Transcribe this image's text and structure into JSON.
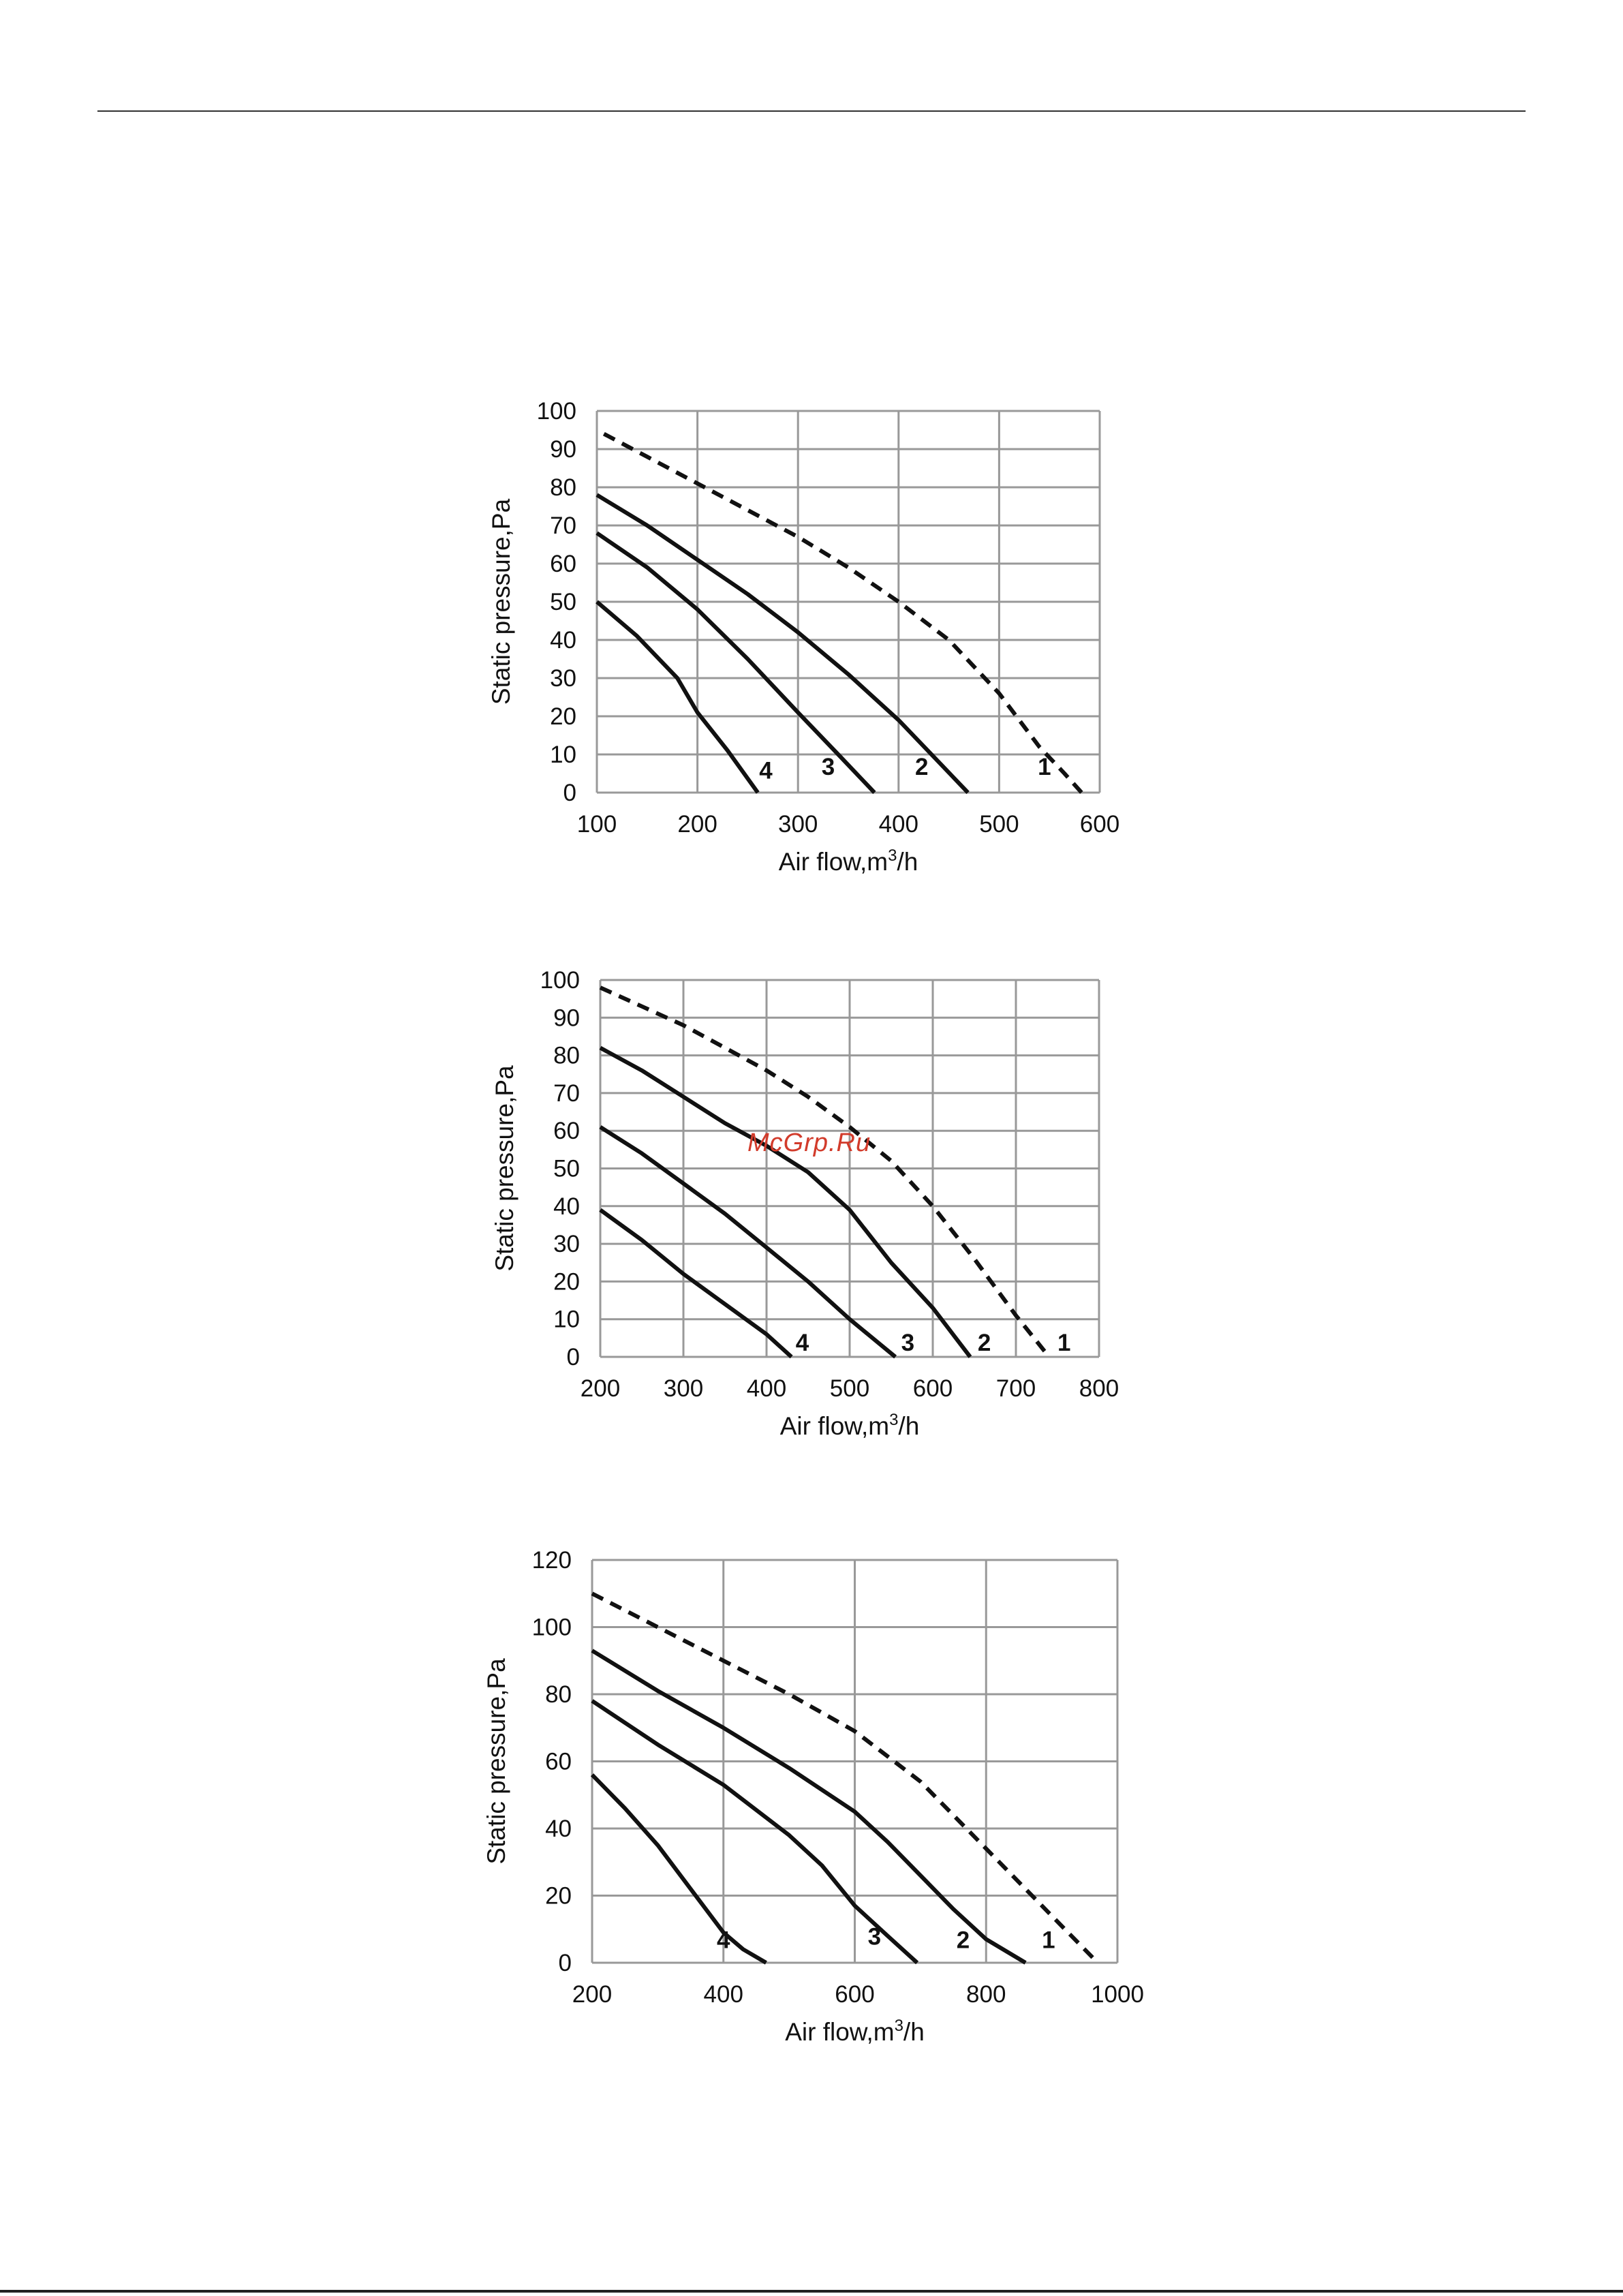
{
  "page": {
    "watermark": "McGrp.Ru",
    "watermark_color": "#d23b2b",
    "grid_color": "#999999",
    "curve_color": "#111111"
  },
  "chart_data": [
    {
      "type": "line",
      "xlabel": "Air flow,m",
      "xlabel_sup": "3",
      "xlabel_tail": "/h",
      "ylabel": "Static pressure,Pa",
      "xlim": [
        100,
        600
      ],
      "ylim": [
        0,
        100
      ],
      "xticks": [
        100,
        200,
        300,
        400,
        500,
        600
      ],
      "yticks": [
        0,
        10,
        20,
        30,
        40,
        50,
        60,
        70,
        80,
        90,
        100
      ],
      "grid": true,
      "series": [
        {
          "name": "1",
          "style": "dashed",
          "label_at": [
            545,
            7
          ],
          "x": [
            107,
            150,
            200,
            250,
            300,
            350,
            400,
            450,
            500,
            540,
            565,
            582
          ],
          "y": [
            94,
            88,
            81,
            74,
            67,
            59,
            50,
            40,
            26,
            12,
            5,
            0
          ]
        },
        {
          "name": "2",
          "style": "solid",
          "label_at": [
            423,
            7
          ],
          "x": [
            100,
            150,
            200,
            250,
            300,
            350,
            400,
            440,
            469
          ],
          "y": [
            78,
            70,
            61,
            52,
            42,
            31,
            19,
            8,
            0
          ]
        },
        {
          "name": "3",
          "style": "solid",
          "label_at": [
            330,
            7
          ],
          "x": [
            100,
            150,
            200,
            250,
            300,
            340,
            376
          ],
          "y": [
            68,
            59,
            48,
            35,
            21,
            10,
            0
          ]
        },
        {
          "name": "4",
          "style": "solid",
          "label_at": [
            268,
            6
          ],
          "x": [
            100,
            140,
            180,
            200,
            230,
            260
          ],
          "y": [
            50,
            41,
            30,
            21,
            11,
            0
          ]
        }
      ]
    },
    {
      "type": "line",
      "xlabel": "Air flow,m",
      "xlabel_sup": "3",
      "xlabel_tail": "/h",
      "ylabel": "Static pressure,Pa",
      "xlim": [
        200,
        800
      ],
      "ylim": [
        0,
        100
      ],
      "xticks": [
        200,
        300,
        400,
        500,
        600,
        700,
        800
      ],
      "yticks": [
        0,
        10,
        20,
        30,
        40,
        50,
        60,
        70,
        80,
        90,
        100
      ],
      "grid": true,
      "series": [
        {
          "name": "1",
          "style": "dashed",
          "label_at": [
            758,
            4
          ],
          "x": [
            200,
            250,
            300,
            350,
            400,
            450,
            500,
            550,
            600,
            650,
            700,
            740
          ],
          "y": [
            98,
            93,
            88,
            82,
            76,
            69,
            61,
            52,
            40,
            26,
            11,
            0
          ]
        },
        {
          "name": "2",
          "style": "solid",
          "label_at": [
            662,
            4
          ],
          "x": [
            200,
            250,
            300,
            350,
            400,
            450,
            500,
            550,
            600,
            645
          ],
          "y": [
            82,
            76,
            69,
            62,
            56,
            49,
            39,
            25,
            13,
            0
          ]
        },
        {
          "name": "3",
          "style": "solid",
          "label_at": [
            570,
            4
          ],
          "x": [
            200,
            250,
            300,
            350,
            400,
            450,
            500,
            555
          ],
          "y": [
            61,
            54,
            46,
            38,
            29,
            20,
            10,
            0
          ]
        },
        {
          "name": "4",
          "style": "solid",
          "label_at": [
            443,
            4
          ],
          "x": [
            200,
            250,
            300,
            350,
            400,
            430
          ],
          "y": [
            39,
            31,
            22,
            14,
            6,
            0
          ]
        }
      ]
    },
    {
      "type": "line",
      "xlabel": "Air flow,m",
      "xlabel_sup": "3",
      "xlabel_tail": "/h",
      "ylabel": "Static pressure,Pa",
      "xlim": [
        200,
        1000
      ],
      "ylim": [
        0,
        120
      ],
      "xticks": [
        200,
        400,
        600,
        800,
        1000
      ],
      "yticks": [
        0,
        20,
        40,
        60,
        80,
        100,
        120
      ],
      "grid": true,
      "series": [
        {
          "name": "1",
          "style": "dashed",
          "label_at": [
            895,
            7
          ],
          "x": [
            200,
            300,
            400,
            500,
            600,
            700,
            800,
            900,
            950,
            970
          ],
          "y": [
            110,
            100,
            90,
            80,
            69,
            54,
            34,
            14,
            4,
            0
          ]
        },
        {
          "name": "2",
          "style": "solid",
          "label_at": [
            765,
            7
          ],
          "x": [
            200,
            300,
            400,
            500,
            600,
            650,
            700,
            750,
            800,
            860
          ],
          "y": [
            93,
            81,
            70,
            58,
            45,
            36,
            26,
            16,
            7,
            0
          ]
        },
        {
          "name": "3",
          "style": "solid",
          "label_at": [
            630,
            8
          ],
          "x": [
            200,
            300,
            400,
            500,
            550,
            600,
            650,
            695
          ],
          "y": [
            78,
            65,
            53,
            38,
            29,
            17,
            8,
            0
          ]
        },
        {
          "name": "4",
          "style": "solid",
          "label_at": [
            400,
            7
          ],
          "x": [
            200,
            250,
            300,
            350,
            400,
            430,
            465
          ],
          "y": [
            56,
            46,
            35,
            22,
            9,
            4,
            0
          ]
        }
      ]
    }
  ]
}
